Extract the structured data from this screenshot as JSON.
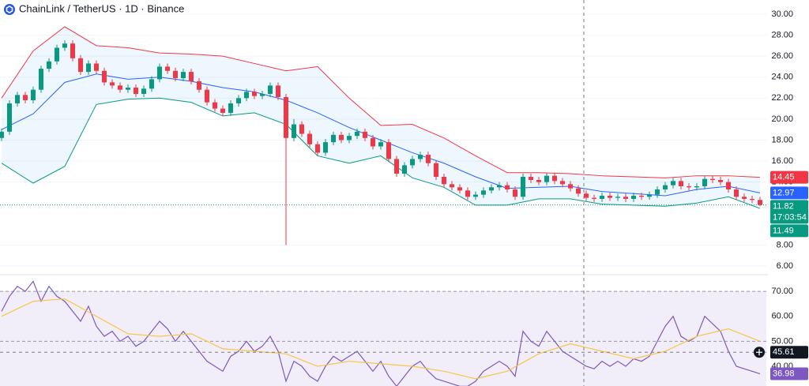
{
  "chart_data": [
    {
      "type": "candlestick",
      "title": "ChainLink / TetherUS · 1D · Binance",
      "up_color": "#089981",
      "down_color": "#f23645",
      "open": [
        18.2,
        18.8,
        21.5,
        22.3,
        21.8,
        22.8,
        24.8,
        25.5,
        26.8,
        27.2,
        25.8,
        24.5,
        25.3,
        24.6,
        23.5,
        23.2,
        22.8,
        23.0,
        22.4,
        22.9,
        23.8,
        25.0,
        24.6,
        23.9,
        24.5,
        23.6,
        22.8,
        21.6,
        21.0,
        20.6,
        21.5,
        22.0,
        22.6,
        22.2,
        22.4,
        23.2,
        22.1,
        18.2,
        19.5,
        18.6,
        17.6,
        16.8,
        17.8,
        18.5,
        18.0,
        18.4,
        18.8,
        18.2,
        17.4,
        17.8,
        16.2,
        14.8,
        15.6,
        16.2,
        16.6,
        15.8,
        14.5,
        13.8,
        13.5,
        13.2,
        12.6,
        12.8,
        13.2,
        13.5,
        13.7,
        13.3,
        12.6,
        14.5,
        14.2,
        14.0,
        14.6,
        14.1,
        13.8,
        13.4,
        12.9,
        12.5,
        12.4,
        12.7,
        12.5,
        12.6,
        12.4,
        12.7,
        12.6,
        12.8,
        13.3,
        13.7,
        14.1,
        13.6,
        13.5,
        13.6,
        14.3,
        14.2,
        14.0,
        13.3,
        12.6,
        12.4,
        12.3
      ],
      "high": [
        19.1,
        21.8,
        22.6,
        22.6,
        23.1,
        25.1,
        25.8,
        27.1,
        27.5,
        27.5,
        26.1,
        25.6,
        25.6,
        24.9,
        23.8,
        23.5,
        23.3,
        23.3,
        23.2,
        24.1,
        25.3,
        25.3,
        24.9,
        24.8,
        24.8,
        23.9,
        23.1,
        21.9,
        21.3,
        21.8,
        22.3,
        22.9,
        22.9,
        22.7,
        23.5,
        23.5,
        22.4,
        20.0,
        19.8,
        18.9,
        17.9,
        18.1,
        18.8,
        18.8,
        18.7,
        19.1,
        19.1,
        18.5,
        18.1,
        18.1,
        16.5,
        15.9,
        16.5,
        16.9,
        16.9,
        16.1,
        14.8,
        14.1,
        13.8,
        13.5,
        13.1,
        13.5,
        13.8,
        14.0,
        14.0,
        13.6,
        14.8,
        14.8,
        14.5,
        14.9,
        14.9,
        14.4,
        14.1,
        13.7,
        13.2,
        12.8,
        13.0,
        13.0,
        12.9,
        12.9,
        13.0,
        13.0,
        13.1,
        13.6,
        14.0,
        14.4,
        14.4,
        13.9,
        13.9,
        14.6,
        14.6,
        14.5,
        14.3,
        13.6,
        12.9,
        12.7,
        12.6
      ],
      "low": [
        17.9,
        18.5,
        21.2,
        21.5,
        21.5,
        22.5,
        24.5,
        25.2,
        26.5,
        25.5,
        24.2,
        24.2,
        24.3,
        23.2,
        22.9,
        22.5,
        22.5,
        22.1,
        22.1,
        22.6,
        23.5,
        24.3,
        23.6,
        23.6,
        23.3,
        22.5,
        21.3,
        20.7,
        20.3,
        20.3,
        21.2,
        21.7,
        21.9,
        21.9,
        22.1,
        21.8,
        8.0,
        17.9,
        18.3,
        17.3,
        16.5,
        16.5,
        17.5,
        17.7,
        17.7,
        18.1,
        17.9,
        17.1,
        17.1,
        15.9,
        14.5,
        14.5,
        15.3,
        15.9,
        15.5,
        14.2,
        13.5,
        13.2,
        12.9,
        12.3,
        12.3,
        12.5,
        12.9,
        13.2,
        13.0,
        12.3,
        12.3,
        13.9,
        13.7,
        13.7,
        13.8,
        13.5,
        13.1,
        12.6,
        12.2,
        12.1,
        12.1,
        12.2,
        12.2,
        12.1,
        12.1,
        12.3,
        12.3,
        12.5,
        13.0,
        13.4,
        13.3,
        13.2,
        13.2,
        13.3,
        13.9,
        13.7,
        13.0,
        12.3,
        12.1,
        12.0,
        11.7
      ],
      "close": [
        18.8,
        21.5,
        22.3,
        21.8,
        22.8,
        24.8,
        25.5,
        26.8,
        27.2,
        25.8,
        24.5,
        25.3,
        24.6,
        23.5,
        23.2,
        22.8,
        23.0,
        22.4,
        22.9,
        23.8,
        25.0,
        24.6,
        23.9,
        24.5,
        23.6,
        22.8,
        21.6,
        21.0,
        20.6,
        21.5,
        22.0,
        22.6,
        22.2,
        22.4,
        23.2,
        22.1,
        18.2,
        19.5,
        18.6,
        17.6,
        16.8,
        17.8,
        18.5,
        18.0,
        18.4,
        18.8,
        18.2,
        17.4,
        17.8,
        16.2,
        14.8,
        15.6,
        16.2,
        16.6,
        15.8,
        14.5,
        13.8,
        13.5,
        13.2,
        12.6,
        12.8,
        13.2,
        13.5,
        13.7,
        13.3,
        12.6,
        14.5,
        14.2,
        14.0,
        14.6,
        14.1,
        13.8,
        13.4,
        12.9,
        12.5,
        12.4,
        12.7,
        12.5,
        12.6,
        12.4,
        12.7,
        12.6,
        12.8,
        13.3,
        13.7,
        14.1,
        13.6,
        13.5,
        13.6,
        14.3,
        14.2,
        14.0,
        13.3,
        12.6,
        12.4,
        12.3,
        11.82
      ],
      "bollinger": {
        "x": [
          0,
          4,
          8,
          12,
          16,
          20,
          24,
          28,
          32,
          36,
          40,
          44,
          48,
          52,
          56,
          60,
          64,
          68,
          72,
          76,
          80,
          84,
          88,
          92,
          96
        ],
        "upper": [
          22.0,
          26.5,
          28.8,
          27.0,
          26.8,
          26.3,
          26.2,
          26.0,
          25.3,
          24.6,
          25.0,
          22.0,
          19.4,
          19.5,
          18.2,
          16.5,
          14.9,
          14.9,
          14.8,
          14.6,
          14.5,
          14.4,
          14.6,
          14.6,
          14.45
        ],
        "middle": [
          19.0,
          20.5,
          23.5,
          24.3,
          23.8,
          24.0,
          23.6,
          23.0,
          22.6,
          21.8,
          20.6,
          19.2,
          18.0,
          16.8,
          15.8,
          14.5,
          13.4,
          13.5,
          13.6,
          13.1,
          12.9,
          12.7,
          13.3,
          13.6,
          12.97
        ],
        "lower": [
          15.8,
          13.9,
          15.5,
          21.4,
          21.9,
          22.0,
          21.6,
          20.3,
          20.6,
          19.5,
          16.5,
          15.8,
          16.5,
          14.4,
          13.5,
          11.8,
          11.8,
          12.4,
          12.4,
          11.9,
          11.8,
          11.7,
          12.0,
          12.6,
          11.49
        ],
        "upper_color": "#f23645",
        "middle_color": "#2962ff",
        "lower_color": "#089981",
        "fill_color": "#2196f3"
      },
      "ylim": [
        5.4,
        31.35
      ],
      "yticks": [
        {
          "value": 30,
          "label": "30.00"
        },
        {
          "value": 28,
          "label": "28.00"
        },
        {
          "value": 26,
          "label": "26.00"
        },
        {
          "value": 24,
          "label": "24.00"
        },
        {
          "value": 22,
          "label": "22.00"
        },
        {
          "value": 20,
          "label": "20.00"
        },
        {
          "value": 18,
          "label": "18.00"
        },
        {
          "value": 16,
          "label": "16.00"
        },
        {
          "value": 14,
          "label": "14.00"
        },
        {
          "value": 8,
          "label": "8.00"
        },
        {
          "value": 6,
          "label": "6.00"
        }
      ],
      "grid": true,
      "price_labels": [
        {
          "value": 14.45,
          "color": "#f23645"
        },
        {
          "value": 12.97,
          "color": "#2962ff"
        },
        {
          "value": 11.82,
          "color": "#089981",
          "countdown": "17:03:54"
        },
        {
          "value": 11.49,
          "color": "#089981"
        }
      ]
    },
    {
      "type": "line",
      "series": [
        {
          "color": "#7e57c2",
          "values": [
            62,
            68,
            72,
            70,
            74,
            66,
            72,
            68,
            66,
            62,
            58,
            64,
            56,
            52,
            54,
            50,
            52,
            48,
            50,
            54,
            58,
            55,
            50,
            54,
            50,
            46,
            42,
            40,
            38,
            44,
            46,
            50,
            46,
            48,
            52,
            46,
            34,
            42,
            40,
            36,
            34,
            40,
            44,
            42,
            44,
            46,
            42,
            38,
            42,
            36,
            32,
            36,
            40,
            42,
            38,
            35,
            34,
            33,
            32,
            32,
            34,
            38,
            40,
            42,
            40,
            36,
            54,
            50,
            48,
            54,
            50,
            46,
            44,
            42,
            40,
            39,
            42,
            40,
            42,
            40,
            43,
            42,
            44,
            50,
            56,
            60,
            52,
            50,
            52,
            60,
            57,
            54,
            46,
            40,
            39,
            38,
            36.98
          ]
        },
        {
          "color": "#f7c548",
          "x": [
            0,
            4,
            8,
            12,
            16,
            20,
            24,
            28,
            32,
            36,
            40,
            44,
            48,
            52,
            56,
            60,
            64,
            68,
            72,
            76,
            80,
            84,
            88,
            92,
            96
          ],
          "values": [
            60,
            66,
            67,
            60,
            53,
            52,
            53,
            47,
            46,
            45,
            40,
            42,
            41,
            40,
            38,
            35,
            38,
            45,
            49,
            46,
            43,
            46,
            52,
            55,
            50
          ]
        }
      ],
      "ylim": [
        32.1,
        75.4
      ],
      "yticks": [
        {
          "value": 70,
          "label": "70.00"
        },
        {
          "value": 60,
          "label": "60.00"
        },
        {
          "value": 50,
          "label": "50.00"
        },
        {
          "value": 40,
          "label": "40.00"
        }
      ],
      "levels": [
        70,
        50
      ],
      "band_color": "#7e57c2",
      "value_labels": [
        {
          "value": 45.61,
          "color": "#131722",
          "crosshair": true
        },
        {
          "value": 36.98,
          "color": "#7e57c2"
        }
      ]
    }
  ]
}
